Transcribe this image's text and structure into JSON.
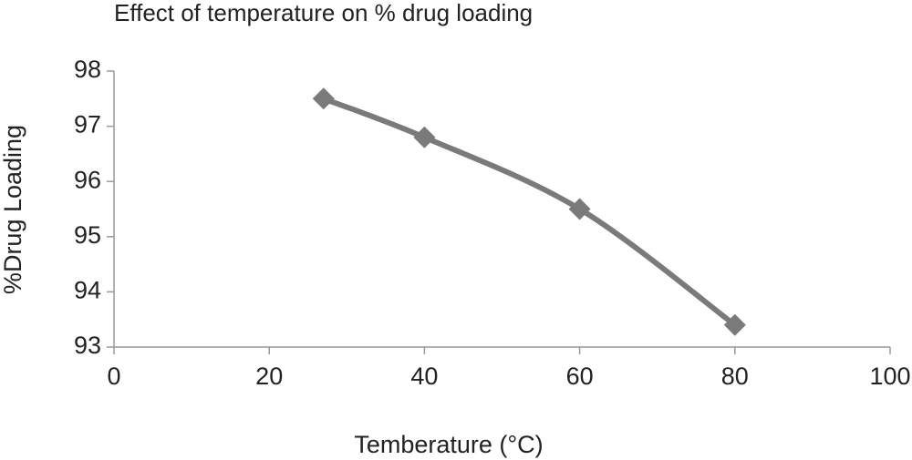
{
  "chart_data": {
    "type": "line",
    "title": "Effect of temperature on % drug loading",
    "x_label": "Temberature (°C)",
    "y_label": "%Drug Loading",
    "x": [
      27,
      40,
      60,
      80
    ],
    "series": [
      {
        "name": "%Drug Loading",
        "color": "#7a7a7a",
        "values": [
          97.5,
          96.8,
          95.5,
          93.4
        ]
      }
    ],
    "xlim": [
      0,
      100
    ],
    "xticks": [
      0,
      20,
      40,
      60,
      80,
      100
    ],
    "ylim": [
      93,
      98
    ],
    "yticks": [
      93,
      94,
      95,
      96,
      97,
      98
    ],
    "grid": false,
    "marker": "diamond"
  }
}
